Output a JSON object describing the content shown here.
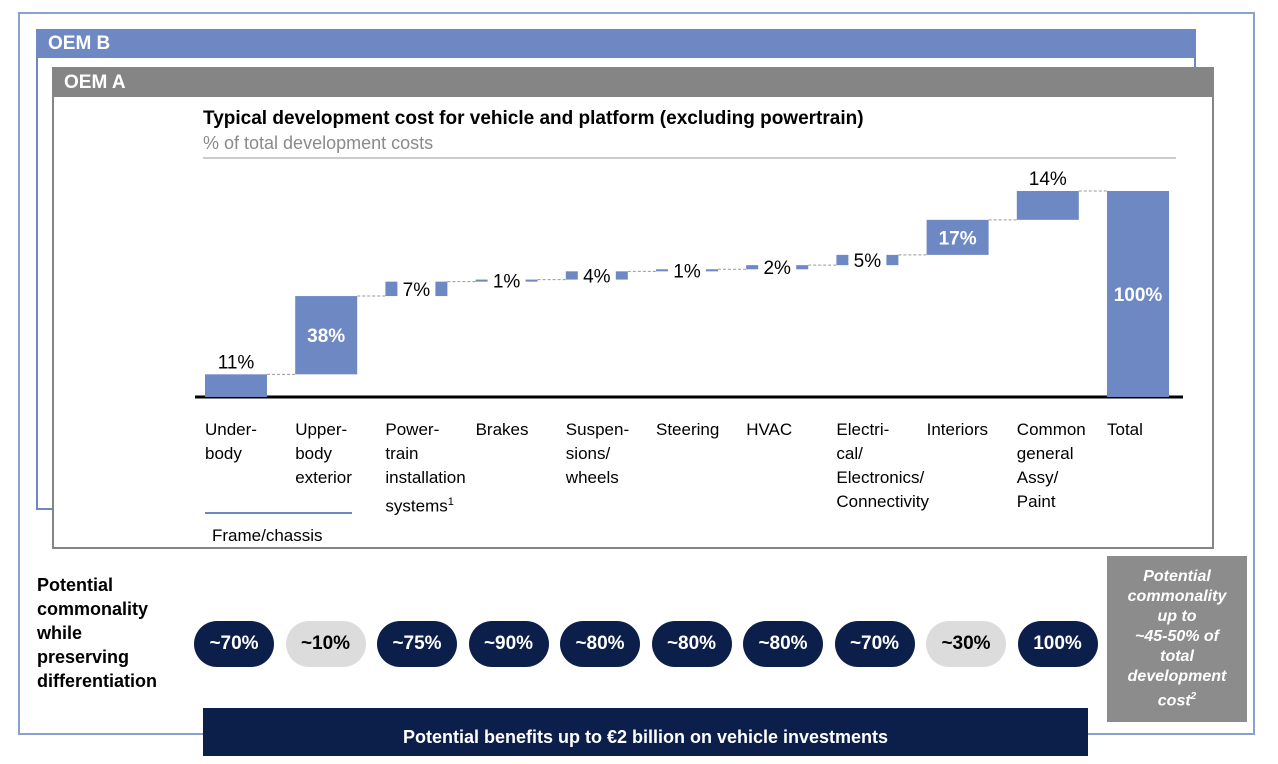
{
  "outer_label": "OEM B",
  "inner_label": "OEM A",
  "chart_data": {
    "type": "waterfall",
    "title": "Typical development cost for vehicle and platform (excluding powertrain)",
    "subtitle": "% of total development costs",
    "categories": [
      "Under-\nbody",
      "Upper-\nbody\nexterior",
      "Power-\ntrain\ninstallation\nsystems",
      "Brakes",
      "Suspen-\nsions/\nwheels",
      "Steering",
      "HVAC",
      "Electri-\ncal/\nElectronics/\nConnectivity",
      "Interiors",
      "Common\ngeneral\nAssy/\nPaint",
      "Total"
    ],
    "values": [
      11,
      38,
      7,
      1,
      4,
      1,
      2,
      5,
      17,
      14,
      100
    ],
    "labels": [
      "11%",
      "38%",
      "7%",
      "1%",
      "4%",
      "1%",
      "2%",
      "5%",
      "17%",
      "14%",
      "100%"
    ],
    "footnote_marker": "1",
    "ylim": [
      0,
      100
    ],
    "grid": false
  },
  "group_label": "Frame/chassis",
  "commonality_label": "Potential\ncommonality\nwhile\npreserving\ndifferentiation",
  "commonality": [
    {
      "value": "~70%",
      "style": "dark"
    },
    {
      "value": "~10%",
      "style": "light"
    },
    {
      "value": "~75%",
      "style": "dark"
    },
    {
      "value": "~90%",
      "style": "dark"
    },
    {
      "value": "~80%",
      "style": "dark"
    },
    {
      "value": "~80%",
      "style": "dark"
    },
    {
      "value": "~80%",
      "style": "dark"
    },
    {
      "value": "~70%",
      "style": "dark"
    },
    {
      "value": "~30%",
      "style": "light"
    },
    {
      "value": "100%",
      "style": "dark"
    }
  ],
  "summary_box": "Potential\ncommonality\nup to\n~45-50% of\ntotal\ndevelopment\ncost",
  "summary_footnote": "2",
  "banner": "Potential benefits up to €2 billion on vehicle investments",
  "colors": {
    "bar": "#6e88c4",
    "navy": "#0c1f4a",
    "grey": "#858585"
  }
}
